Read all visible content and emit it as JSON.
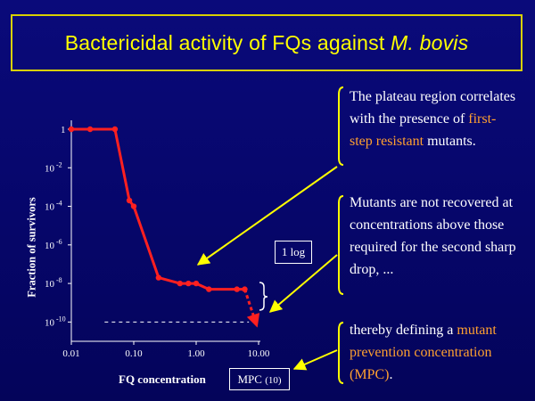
{
  "slide": {
    "title_main": "Bactericidal activity of FQs against ",
    "title_species": "M. bovis"
  },
  "annotations": {
    "plateau": {
      "text_before": "The plateau region correlates  with the presence of ",
      "highlight": "first-step resistant",
      "text_after": " mutants.",
      "highlight_color": "#ffa030"
    },
    "mutants": {
      "text": "Mutants are not recovered at concentrations above those required for the second sharp drop, ..."
    },
    "mpc": {
      "text_before": "thereby defining a ",
      "highlight": "mutant prevention concentration (MPC)",
      "text_after": ".",
      "highlight_color": "#ffa030"
    }
  },
  "labels": {
    "one_log": "1 log",
    "mpc_box": "MPC",
    "mpc_value": "(10)"
  },
  "colors": {
    "background": "#06066a",
    "title": "#ffff00",
    "series": "#ff2020",
    "arrows": "#ffff00",
    "braces": "#ffff00"
  },
  "chart_data": {
    "type": "line",
    "title": "",
    "xlabel": "FQ concentration",
    "ylabel": "Fraction of survivors",
    "x_scale": "log",
    "y_scale": "log",
    "xlim": [
      0.01,
      10
    ],
    "ylim": [
      1e-11,
      1
    ],
    "x_ticks": [
      {
        "value": 0.01,
        "label": "0.01"
      },
      {
        "value": 0.1,
        "label": "0.10"
      },
      {
        "value": 1,
        "label": "1.00"
      },
      {
        "value": 10,
        "label": "10.00"
      }
    ],
    "y_ticks": [
      {
        "value": 1,
        "base": "1",
        "exp": ""
      },
      {
        "value": 0.01,
        "base": "10",
        "exp": "-2"
      },
      {
        "value": 0.0001,
        "base": "10",
        "exp": "-4"
      },
      {
        "value": 1e-06,
        "base": "10",
        "exp": "-6"
      },
      {
        "value": 1e-08,
        "base": "10",
        "exp": "-8"
      },
      {
        "value": 1e-10,
        "base": "10",
        "exp": "-10"
      }
    ],
    "series": [
      {
        "x": [
          0.01,
          0.02,
          0.05,
          0.085,
          0.1,
          0.25,
          0.55,
          0.75,
          1.0,
          1.6,
          4.5,
          6.0
        ],
        "y": [
          1,
          1,
          1,
          0.0002,
          0.0001,
          2e-08,
          1e-08,
          1e-08,
          1e-08,
          5e-09,
          5e-09,
          5e-09
        ]
      }
    ],
    "extrapolation": {
      "x": [
        6.0,
        9.0
      ],
      "y": [
        5e-09,
        5e-11
      ]
    },
    "detection_limit": {
      "y": 1e-10,
      "x": [
        0.015,
        7.0
      ]
    }
  }
}
